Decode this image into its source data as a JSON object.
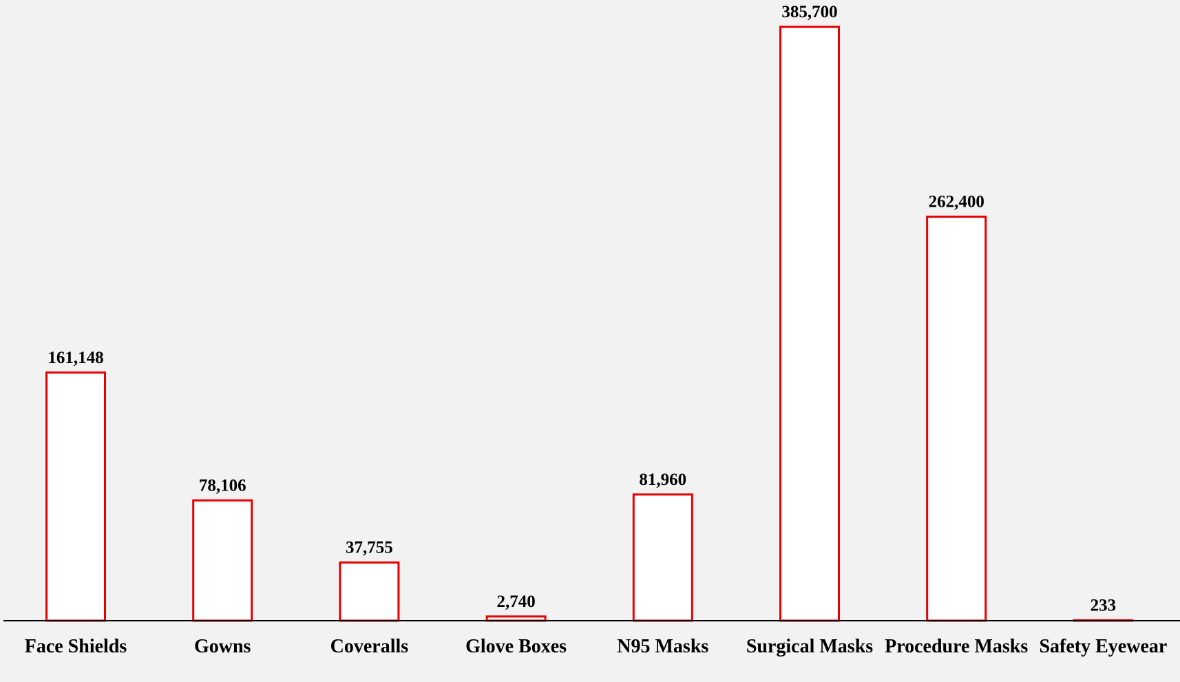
{
  "chart_data": {
    "type": "bar",
    "categories": [
      "Face Shields",
      "Gowns",
      "Coveralls",
      "Glove Boxes",
      "N95 Masks",
      "Surgical Masks",
      "Procedure Masks",
      "Safety Eyewear"
    ],
    "values": [
      161148,
      78106,
      37755,
      2740,
      81960,
      385700,
      262400,
      233
    ],
    "value_labels": [
      "161,148",
      "78,106",
      "37,755",
      "2,740",
      "81,960",
      "385,700",
      "262,400",
      "233"
    ],
    "color": "#e60000"
  }
}
